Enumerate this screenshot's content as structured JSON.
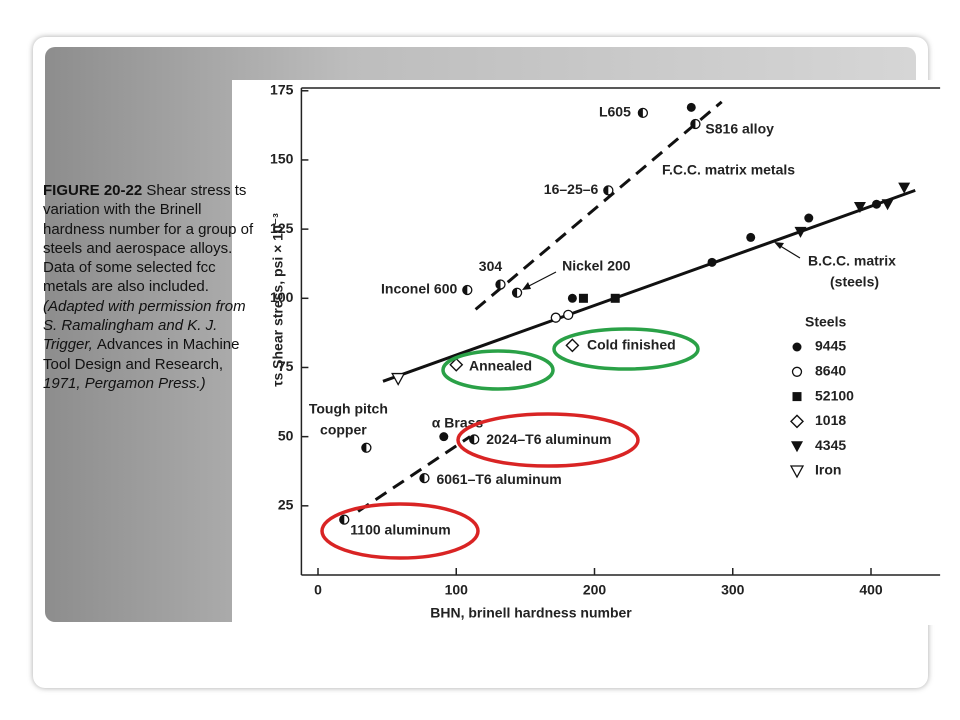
{
  "chart_data": {
    "type": "scatter",
    "xlabel": "BHN, brinell hardness number",
    "ylabel": "τs Shear stress, psi × 10⁻³",
    "xlim": [
      -12,
      450
    ],
    "xticks": [
      0,
      100,
      200,
      300,
      400
    ],
    "ylim": [
      0,
      176
    ],
    "yticks": [
      25,
      50,
      75,
      100,
      125,
      150,
      175
    ],
    "legend_title": "Steels",
    "legend_position": "right",
    "series": [
      {
        "name": "9445",
        "marker": "filled-circle",
        "x": [
          270,
          285,
          313,
          355,
          404,
          184
        ],
        "values": [
          169,
          113,
          122,
          129,
          134,
          100
        ]
      },
      {
        "name": "8640",
        "marker": "open-circle",
        "x": [
          172,
          181
        ],
        "values": [
          93,
          94
        ]
      },
      {
        "name": "52100",
        "marker": "square",
        "x": [
          192,
          215
        ],
        "values": [
          100,
          100
        ]
      },
      {
        "name": "1018",
        "marker": "diamond",
        "x": [
          100,
          184
        ],
        "values": [
          76,
          83
        ]
      },
      {
        "name": "4345",
        "marker": "filled-triangle-down",
        "x": [
          349,
          392,
          412,
          424
        ],
        "values": [
          124,
          133,
          134,
          140
        ]
      },
      {
        "name": "Iron",
        "marker": "open-triangle-down",
        "x": [
          58
        ],
        "values": [
          71
        ]
      }
    ],
    "labeled_points": [
      {
        "label": [
          "L605"
        ],
        "marker": "half-circle",
        "x": 235,
        "y": 167
      },
      {
        "label": [
          "S816 alloy"
        ],
        "marker": "half-circle",
        "x": 273,
        "y": 163
      },
      {
        "label": [
          "16–25–6"
        ],
        "marker": "half-circle",
        "x": 210,
        "y": 139
      },
      {
        "label": [
          "304"
        ],
        "marker": "half-circle",
        "x": 132,
        "y": 105
      },
      {
        "label": [
          "Nickel 200"
        ],
        "marker": "half-circle",
        "x": 144,
        "y": 102
      },
      {
        "label": [
          "Inconel 600"
        ],
        "marker": "half-circle",
        "x": 108,
        "y": 103
      },
      {
        "label": [
          "Tough pitch",
          "copper"
        ],
        "marker": "half-circle",
        "x": 35,
        "y": 46
      },
      {
        "label": [
          "α Brass"
        ],
        "marker": "filled-circle",
        "x": 91,
        "y": 50
      },
      {
        "label": [
          "2024–T6 aluminum"
        ],
        "marker": "half-circle",
        "x": 113,
        "y": 49
      },
      {
        "label": [
          "6061–T6 aluminum"
        ],
        "marker": "half-circle",
        "x": 77,
        "y": 35
      },
      {
        "label": [
          "1100 aluminum"
        ],
        "marker": "half-circle",
        "x": 19,
        "y": 20
      }
    ],
    "trend_lines": [
      {
        "label": [
          "F.C.C. matrix metals"
        ],
        "dashed": true,
        "x": [
          114,
          292
        ],
        "y": [
          96,
          171
        ]
      },
      {
        "label": [
          "B.C.C. matrix",
          "(steels)"
        ],
        "dashed": false,
        "x": [
          47,
          432
        ],
        "y": [
          70,
          139
        ]
      },
      {
        "dashed": true,
        "x": [
          29,
          110
        ],
        "y": [
          23,
          50
        ]
      }
    ],
    "annotations": [
      "Annealed",
      "Cold finished"
    ]
  },
  "caption": {
    "parts": [
      {
        "text": "FIGURE 20-22",
        "style": "bold"
      },
      {
        "text": " Shear stress ts variation with the Brinell hardness number for a group of steels and aerospace alloys. Data of some selected fcc metals are also included. ",
        "style": "normal"
      },
      {
        "text": "(Adapted with permission from S. Ramalingham and K. J. Trigger, ",
        "style": "italic"
      },
      {
        "text": "Advances in Machine Tool Design and Research, ",
        "style": "normal"
      },
      {
        "text": "1971, Pergamon Press.)",
        "style": "italic"
      }
    ]
  }
}
